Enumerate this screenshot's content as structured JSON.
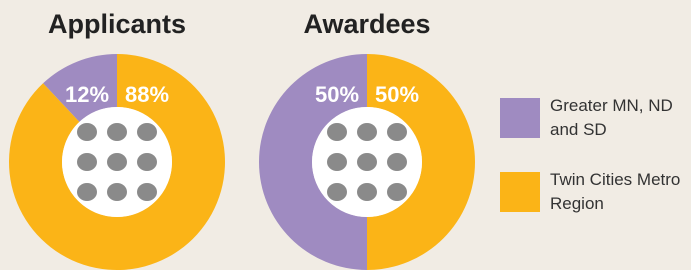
{
  "chart_data": [
    {
      "type": "pie",
      "title": "Applicants",
      "categories": [
        "Greater MN, ND and SD",
        "Twin Cities Metro Region"
      ],
      "values": [
        12,
        88
      ],
      "value_labels": [
        "12%",
        "88%"
      ],
      "colors": [
        "#9f8bc1",
        "#fbb417"
      ]
    },
    {
      "type": "pie",
      "title": "Awardees",
      "categories": [
        "Greater MN, ND and SD",
        "Twin Cities Metro Region"
      ],
      "values": [
        50,
        50
      ],
      "value_labels": [
        "50%",
        "50%"
      ],
      "colors": [
        "#9f8bc1",
        "#fbb417"
      ]
    }
  ]
}
